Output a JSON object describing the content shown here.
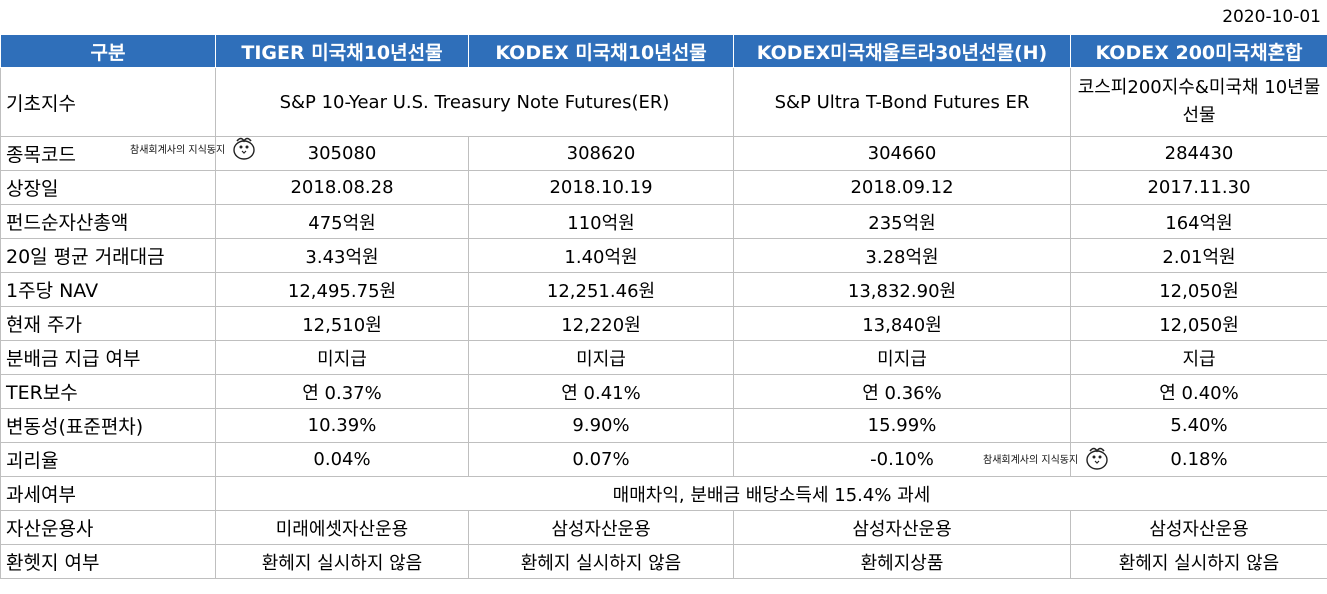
{
  "date": "2020-10-01",
  "header": [
    "구분",
    "TIGER 미국채10년선물",
    "KODEX 미국채10년선물",
    "KODEX미국채울트라30년선물(H)",
    "KODEX 200미국채혼합"
  ],
  "base_index": {
    "label": "기초지수",
    "col12": "S&P 10-Year U.S. Treasury Note Futures(ER)",
    "col3": "S&P Ultra T-Bond Futures ER",
    "col4": "코스피200지수&미국채 10년물선물"
  },
  "rows": [
    {
      "label": "종목코드",
      "values": [
        "305080",
        "308620",
        "304660",
        "284430"
      ]
    },
    {
      "label": "상장일",
      "values": [
        "2018.08.28",
        "2018.10.19",
        "2018.09.12",
        "2017.11.30"
      ]
    },
    {
      "label": "펀드순자산총액",
      "values": [
        "475억원",
        "110억원",
        "235억원",
        "164억원"
      ]
    },
    {
      "label": "20일 평균 거래대금",
      "values": [
        "3.43억원",
        "1.40억원",
        "3.28억원",
        "2.01억원"
      ]
    },
    {
      "label": "1주당 NAV",
      "values": [
        "12,495.75원",
        "12,251.46원",
        "13,832.90원",
        "12,050원"
      ]
    },
    {
      "label": "현재 주가",
      "values": [
        "12,510원",
        "12,220원",
        "13,840원",
        "12,050원"
      ]
    },
    {
      "label": "분배금 지급 여부",
      "values": [
        "미지급",
        "미지급",
        "미지급",
        "지급"
      ]
    },
    {
      "label": "TER보수",
      "values": [
        "연 0.37%",
        "연 0.41%",
        "연 0.36%",
        "연 0.40%"
      ]
    },
    {
      "label": "변동성(표준편차)",
      "values": [
        "10.39%",
        "9.90%",
        "15.99%",
        "5.40%"
      ]
    },
    {
      "label": "괴리율",
      "values": [
        "0.04%",
        "0.07%",
        "-0.10%",
        "0.18%"
      ]
    }
  ],
  "tax": {
    "label": "과세여부",
    "value": "매매차익, 분배금 배당소득세 15.4% 과세"
  },
  "manager": {
    "label": "자산운용사",
    "values": [
      "미래에셋자산운용",
      "삼성자산운용",
      "삼성자산운용",
      "삼성자산운용"
    ]
  },
  "hedge": {
    "label": "환헷지 여부",
    "values": [
      "환헤지 실시하지 않음",
      "환헤지 실시하지 않음",
      "환헤지상품",
      "환헤지 실시하지 않음"
    ]
  },
  "watermark": "참새회계사의 지식동지"
}
